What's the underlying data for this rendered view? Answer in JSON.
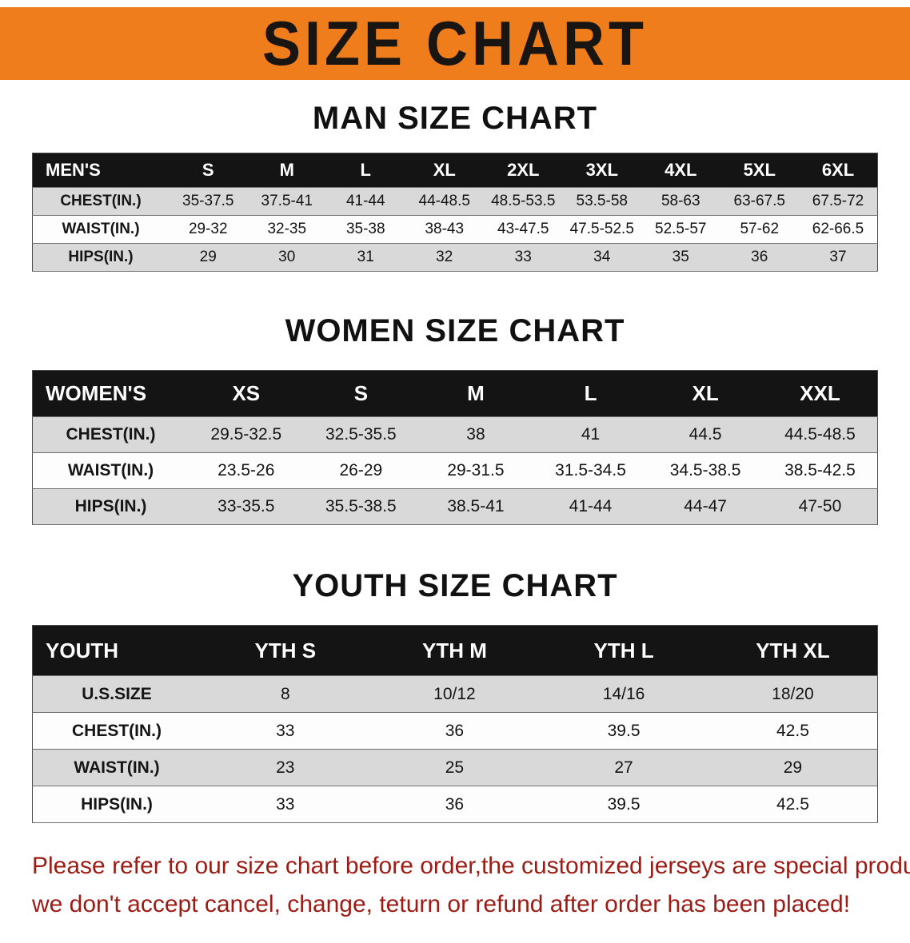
{
  "page": {
    "banner_title": "SIZE CHART"
  },
  "colors": {
    "banner_bg": "#f07d1c",
    "header_bg": "#141414",
    "row_shaded": "#d9d9d9",
    "note_text": "#9c1c15"
  },
  "sections": [
    {
      "heading": "MAN SIZE CHART",
      "table": {
        "header": [
          "MEN'S",
          "S",
          "M",
          "L",
          "XL",
          "2XL",
          "3XL",
          "4XL",
          "5XL",
          "6XL"
        ],
        "rows": [
          [
            "CHEST(IN.)",
            "35-37.5",
            "37.5-41",
            "41-44",
            "44-48.5",
            "48.5-53.5",
            "53.5-58",
            "58-63",
            "63-67.5",
            "67.5-72"
          ],
          [
            "WAIST(IN.)",
            "29-32",
            "32-35",
            "35-38",
            "38-43",
            "43-47.5",
            "47.5-52.5",
            "52.5-57",
            "57-62",
            "62-66.5"
          ],
          [
            "HIPS(IN.)",
            "29",
            "30",
            "31",
            "32",
            "33",
            "34",
            "35",
            "36",
            "37"
          ]
        ]
      }
    },
    {
      "heading": "WOMEN SIZE CHART",
      "table": {
        "header": [
          "WOMEN'S",
          "XS",
          "S",
          "M",
          "L",
          "XL",
          "XXL"
        ],
        "rows": [
          [
            "CHEST(IN.)",
            "29.5-32.5",
            "32.5-35.5",
            "38",
            "41",
            "44.5",
            "44.5-48.5"
          ],
          [
            "WAIST(IN.)",
            "23.5-26",
            "26-29",
            "29-31.5",
            "31.5-34.5",
            "34.5-38.5",
            "38.5-42.5"
          ],
          [
            "HIPS(IN.)",
            "33-35.5",
            "35.5-38.5",
            "38.5-41",
            "41-44",
            "44-47",
            "47-50"
          ]
        ]
      }
    },
    {
      "heading": "YOUTH SIZE CHART",
      "table": {
        "header": [
          "YOUTH",
          "YTH S",
          "YTH M",
          "YTH L",
          "YTH XL"
        ],
        "rows": [
          [
            "U.S.SIZE",
            "8",
            "10/12",
            "14/16",
            "18/20"
          ],
          [
            "CHEST(IN.)",
            "33",
            "36",
            "39.5",
            "42.5"
          ],
          [
            "WAIST(IN.)",
            "23",
            "25",
            "27",
            "29"
          ],
          [
            "HIPS(IN.)",
            "33",
            "36",
            "39.5",
            "42.5"
          ]
        ]
      }
    }
  ],
  "note": {
    "line1": "Please refer to our size chart before order,the customized jerseys are special products,",
    "line2": "we don't accept cancel, change, teturn or refund after order has been placed!"
  }
}
